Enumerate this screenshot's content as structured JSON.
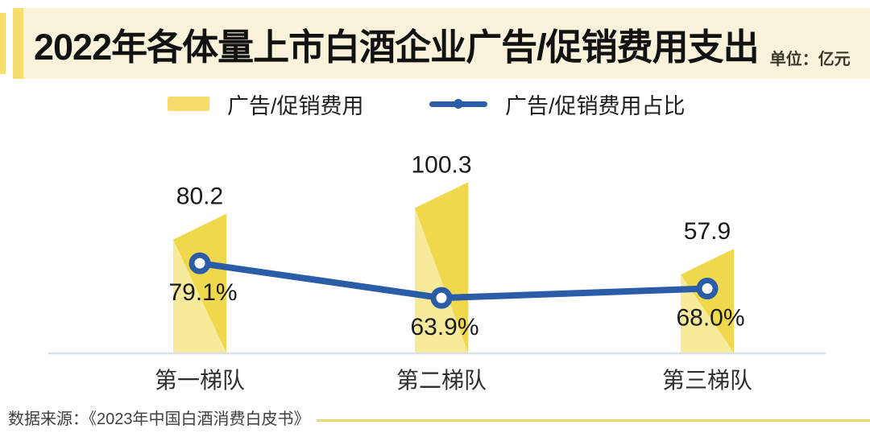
{
  "header": {
    "title": "2022年各体量上市白酒企业广告/促销费用支出",
    "unit": "单位：亿元"
  },
  "legend": [
    {
      "label": "广告/促销费用",
      "marker": "yellow-bar-swatch"
    },
    {
      "label": "广告/促销费用占比",
      "marker": "blue-line-circle-swatch"
    }
  ],
  "chart_data": {
    "type": "bar+line combo",
    "title": "2022年各体量上市白酒企业广告/促销费用支出",
    "unit_note": "单位：亿元",
    "categories": [
      "第一梯队",
      "第二梯队",
      "第三梯队"
    ],
    "series": [
      {
        "name": "广告/促销费用",
        "type": "bar",
        "unit": "亿元",
        "values": [
          80.2,
          100.3,
          57.9
        ],
        "data_labels": [
          "80.2",
          "100.3",
          "57.9"
        ]
      },
      {
        "name": "广告/促销费用占比",
        "type": "line",
        "unit": "%",
        "values": [
          79.1,
          63.9,
          68.0
        ],
        "data_labels": [
          "79.1%",
          "63.9%",
          "68.0%"
        ]
      }
    ],
    "value_axis_visible": false,
    "grid": false,
    "legend_position": "top"
  },
  "source": {
    "text": "数据来源：《2023年中国白酒消费白皮书》"
  },
  "colors": {
    "accent_yellow": "#F6DD6E",
    "header_bg": "#FAF3DC",
    "bar_dark": "#F0D84D",
    "bar_light": "#F8EA9B",
    "line_blue": "#2A5CA8",
    "axis_gray": "#DBE0E8",
    "source_line": "#EBD87B",
    "label_black": "#1a1a1a"
  }
}
